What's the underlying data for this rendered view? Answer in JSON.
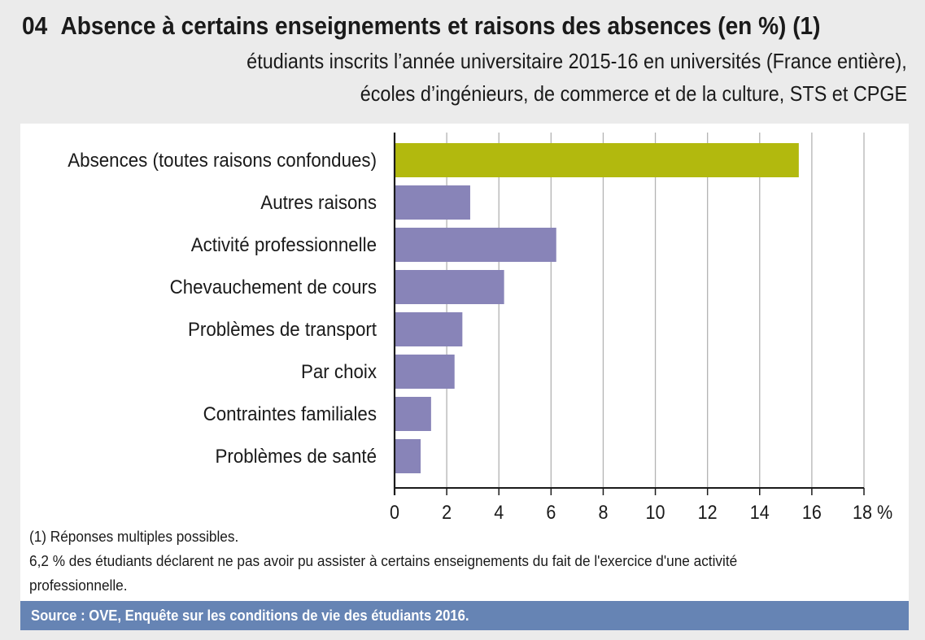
{
  "header": {
    "number": "04",
    "title": "Absence à certains enseignements et raisons des absences (en %) (1)",
    "subtitle_line1": "étudiants inscrits l’année universitaire 2015-16 en universités (France entière),",
    "subtitle_line2": "écoles d’ingénieurs, de commerce et de la culture, STS et CPGE"
  },
  "chart_data": {
    "type": "bar",
    "orientation": "horizontal",
    "title": "Absence à certains enseignements et raisons des absences (en %) (1)",
    "xlabel": "",
    "ylabel": "",
    "categories": [
      "Absences (toutes raisons confondues)",
      "Autres raisons",
      "Activité professionnelle",
      "Chevauchement de cours",
      "Problèmes de transport",
      "Par choix",
      "Contraintes familiales",
      "Problèmes de santé"
    ],
    "values": [
      15.5,
      2.9,
      6.2,
      4.2,
      2.6,
      2.3,
      1.4,
      1.0
    ],
    "bar_colors": [
      "#b2b90e",
      "#8884b8",
      "#8884b8",
      "#8884b8",
      "#8884b8",
      "#8884b8",
      "#8884b8",
      "#8884b8"
    ],
    "xlim": [
      0,
      18
    ],
    "x_ticks": [
      0,
      2,
      4,
      6,
      8,
      10,
      12,
      14,
      16,
      18
    ],
    "x_tick_labels": [
      "0",
      "2",
      "4",
      "6",
      "8",
      "10",
      "12",
      "14",
      "16",
      "18 %"
    ],
    "grid": true,
    "grid_color": "#b3b3b3",
    "axis_color": "#1a1a1a"
  },
  "notes": {
    "line1": "(1) Réponses multiples possibles.",
    "line2": "6,2 % des étudiants déclarent ne pas avoir pu assister à certains enseignements du fait de l'exercice d'une activité",
    "line3": "professionnelle."
  },
  "source": "Source : OVE, Enquête sur les conditions de vie des étudiants 2016."
}
